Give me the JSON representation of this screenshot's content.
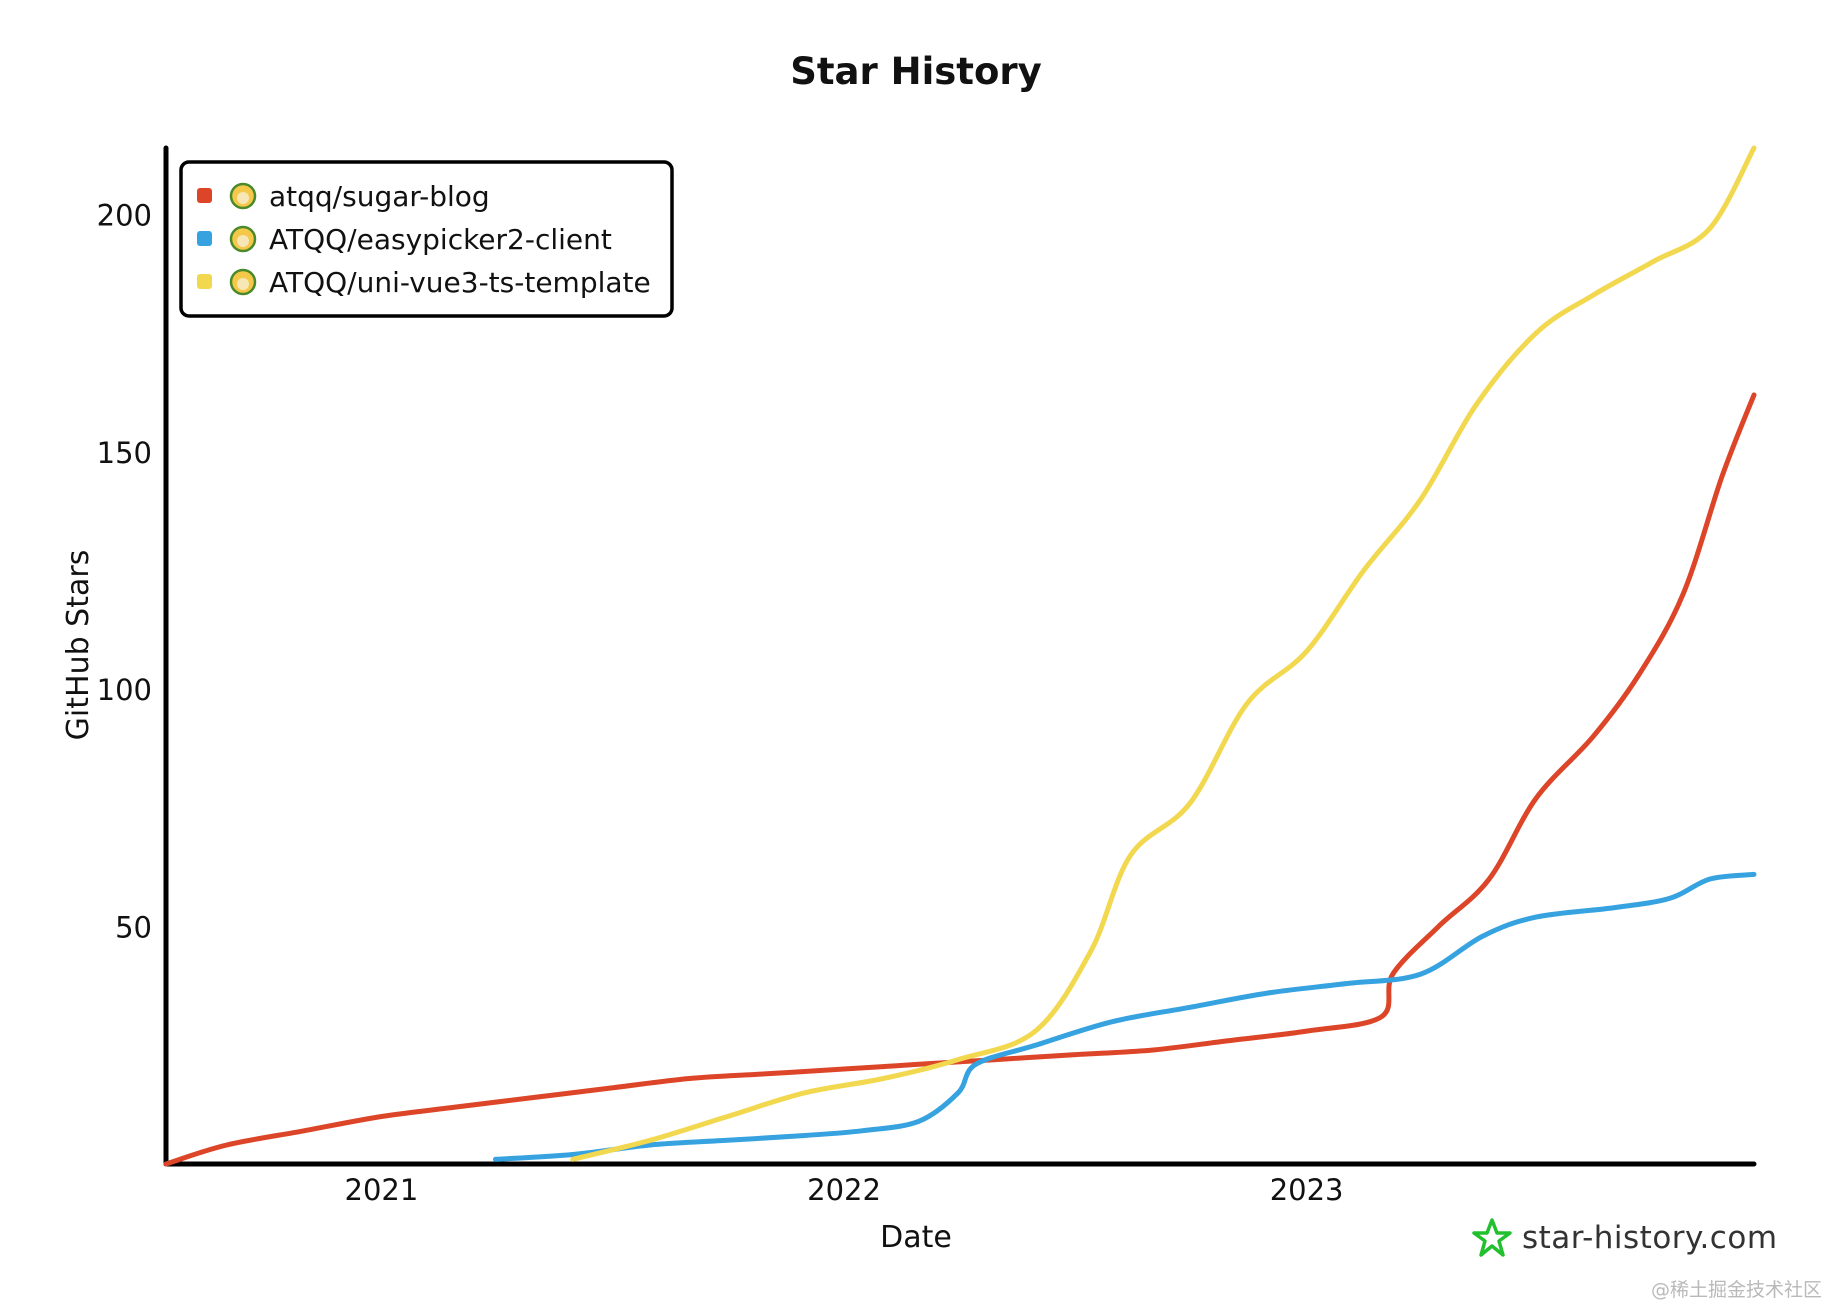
{
  "chart_data": {
    "type": "line",
    "title": "Star History",
    "xlabel": "Date",
    "ylabel": "GitHub Stars",
    "x_ticks": [
      "2021",
      "2022",
      "2023"
    ],
    "y_ticks": [
      50,
      100,
      150,
      200
    ],
    "xlim": [
      "2020-07-15",
      "2023-12-20"
    ],
    "ylim": [
      0,
      214
    ],
    "legend_position": "top-left",
    "grid": false,
    "series": [
      {
        "name": "atqq/sugar-blog",
        "color": "#dd4528",
        "icon": "avatar-icon",
        "points": [
          [
            "2020-07-15",
            0
          ],
          [
            "2020-09-01",
            4
          ],
          [
            "2020-11-01",
            7
          ],
          [
            "2021-01-01",
            10
          ],
          [
            "2021-03-01",
            12
          ],
          [
            "2021-05-01",
            14
          ],
          [
            "2021-07-01",
            16
          ],
          [
            "2021-09-01",
            18
          ],
          [
            "2021-11-01",
            19
          ],
          [
            "2022-01-01",
            20
          ],
          [
            "2022-03-01",
            21
          ],
          [
            "2022-05-01",
            22
          ],
          [
            "2022-07-01",
            23
          ],
          [
            "2022-09-01",
            24
          ],
          [
            "2022-11-01",
            26
          ],
          [
            "2023-01-01",
            28
          ],
          [
            "2023-03-01",
            31
          ],
          [
            "2023-03-10",
            40
          ],
          [
            "2023-04-15",
            50
          ],
          [
            "2023-05-25",
            60
          ],
          [
            "2023-07-01",
            77
          ],
          [
            "2023-08-15",
            90
          ],
          [
            "2023-09-20",
            103
          ],
          [
            "2023-10-25",
            120
          ],
          [
            "2023-11-25",
            145
          ],
          [
            "2023-12-20",
            162
          ]
        ]
      },
      {
        "name": "ATQQ/easypicker2-client",
        "color": "#36a2e0",
        "icon": "avatar-icon",
        "points": [
          [
            "2021-04-01",
            1
          ],
          [
            "2021-06-01",
            2
          ],
          [
            "2021-08-01",
            4
          ],
          [
            "2021-10-01",
            5
          ],
          [
            "2021-12-01",
            6
          ],
          [
            "2022-01-15",
            7
          ],
          [
            "2022-03-01",
            9
          ],
          [
            "2022-04-01",
            15
          ],
          [
            "2022-04-15",
            21
          ],
          [
            "2022-06-01",
            25
          ],
          [
            "2022-08-01",
            30
          ],
          [
            "2022-10-01",
            33
          ],
          [
            "2022-12-01",
            36
          ],
          [
            "2023-02-01",
            38
          ],
          [
            "2023-04-01",
            40
          ],
          [
            "2023-05-20",
            48
          ],
          [
            "2023-07-01",
            52
          ],
          [
            "2023-09-01",
            54
          ],
          [
            "2023-10-15",
            56
          ],
          [
            "2023-11-15",
            60
          ],
          [
            "2023-12-20",
            61
          ]
        ]
      },
      {
        "name": "ATQQ/uni-vue3-ts-template",
        "color": "#f2d84e",
        "icon": "avatar-icon",
        "points": [
          [
            "2021-06-01",
            1
          ],
          [
            "2021-08-01",
            5
          ],
          [
            "2021-10-01",
            10
          ],
          [
            "2021-12-01",
            15
          ],
          [
            "2022-02-01",
            18
          ],
          [
            "2022-04-01",
            22
          ],
          [
            "2022-06-01",
            28
          ],
          [
            "2022-07-15",
            45
          ],
          [
            "2022-08-15",
            65
          ],
          [
            "2022-10-01",
            76
          ],
          [
            "2022-11-15",
            97
          ],
          [
            "2023-01-01",
            108
          ],
          [
            "2023-02-15",
            125
          ],
          [
            "2023-04-01",
            140
          ],
          [
            "2023-05-15",
            160
          ],
          [
            "2023-07-01",
            175
          ],
          [
            "2023-08-15",
            183
          ],
          [
            "2023-10-01",
            190
          ],
          [
            "2023-11-15",
            197
          ],
          [
            "2023-12-20",
            214
          ]
        ]
      }
    ]
  },
  "brand": {
    "text": "star-history.com",
    "icon": "star-logo-icon"
  },
  "watermark": "@稀土掘金技术社区"
}
